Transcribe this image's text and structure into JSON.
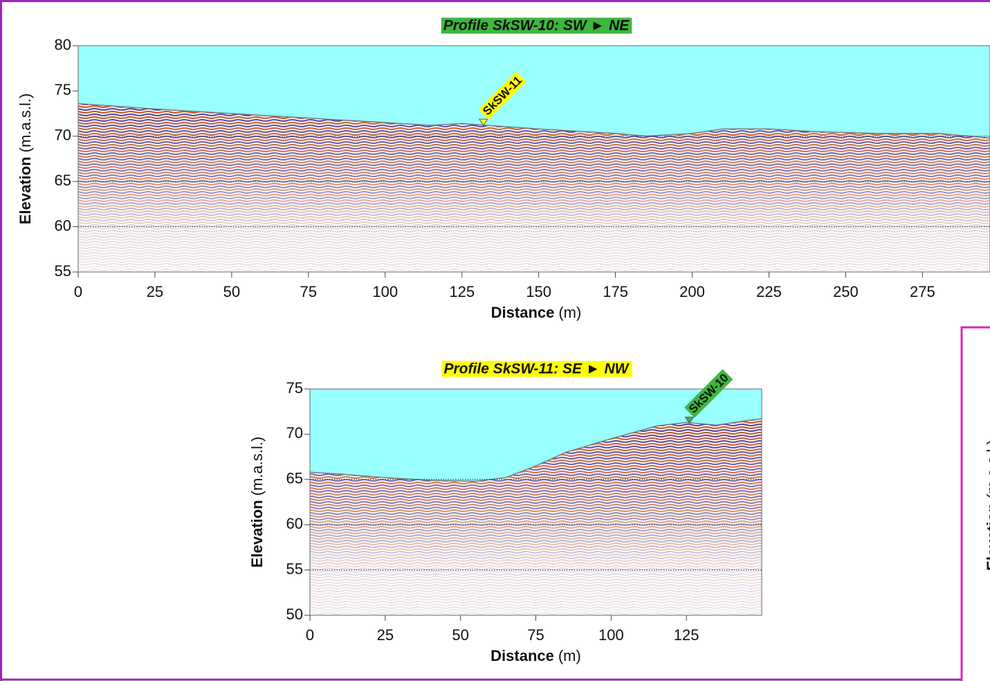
{
  "chart_data": [
    {
      "type": "radargram",
      "title": "Profile SkSW-10: SW ► NE",
      "title_color": "#3cb83c",
      "title_text_color": "#ffffff",
      "xlabel": "Distance",
      "xunit": "(m)",
      "ylabel": "Elevation",
      "yunit": "(m.a.s.l.)",
      "xlim": [
        0,
        297
      ],
      "ylim": [
        55,
        80
      ],
      "xticks": [
        0,
        25,
        50,
        75,
        100,
        125,
        150,
        175,
        200,
        225,
        250,
        275
      ],
      "yticks": [
        55,
        60,
        65,
        70,
        75,
        80
      ],
      "gridlines": [
        60,
        65,
        70
      ],
      "surface": {
        "x": [
          0,
          25,
          50,
          75,
          100,
          115,
          125,
          133,
          150,
          175,
          185,
          200,
          210,
          225,
          240,
          260,
          280,
          297
        ],
        "y": [
          73.6,
          73,
          72.5,
          72,
          71.5,
          71.2,
          71.4,
          71.2,
          70.8,
          70.3,
          70,
          70.3,
          70.8,
          70.8,
          70.5,
          70.3,
          70.3,
          69.8
        ]
      },
      "marker": {
        "label": "SkSW-11",
        "x": 132,
        "y": 71.2,
        "color": "#ffff00"
      }
    },
    {
      "type": "radargram",
      "title": "Profile SkSW-11: SE ► NW",
      "title_color": "#ffff00",
      "title_text_color": "#000000",
      "xlabel": "Distance",
      "xunit": "(m)",
      "ylabel": "Elevation",
      "yunit": "(m.a.s.l.)",
      "xlim": [
        0,
        150
      ],
      "ylim": [
        50,
        75
      ],
      "xticks": [
        0,
        25,
        50,
        75,
        100,
        125
      ],
      "yticks": [
        50,
        55,
        60,
        65,
        70,
        75
      ],
      "gridlines": [
        55,
        60,
        65
      ],
      "surface": {
        "x": [
          0,
          10,
          25,
          40,
          55,
          65,
          75,
          85,
          100,
          115,
          125,
          135,
          145,
          150
        ],
        "y": [
          65.8,
          65.6,
          65.2,
          64.9,
          64.8,
          65.2,
          66.5,
          68,
          69.5,
          70.9,
          71.3,
          71,
          71.5,
          71.7
        ]
      },
      "marker": {
        "label": "SkSW-10",
        "x": 126,
        "y": 71.2,
        "color": "#3cb83c"
      }
    }
  ],
  "side_panel": {
    "ylabel": "Elevation",
    "yunit": "(m.a.s.l.)"
  }
}
